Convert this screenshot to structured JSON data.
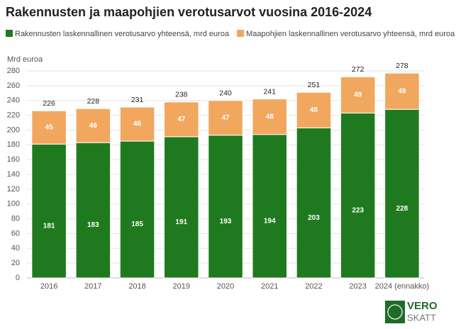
{
  "chart_data": {
    "type": "stacked_bar",
    "title": "Rakennusten ja maapohjien verotusarvot vuosina 2016-2024",
    "y_label": "Mrd euroa",
    "categories": [
      "2016",
      "2017",
      "2018",
      "2019",
      "2020",
      "2021",
      "2022",
      "2023",
      "2024 (ennakko)"
    ],
    "series": [
      {
        "name": "Rakennusten laskennallinen verotusarvo yhteensä, mrd euroa",
        "color": "#1f7a1f",
        "values": [
          181,
          183,
          185,
          191,
          193,
          194,
          203,
          223,
          228
        ]
      },
      {
        "name": "Maapohjien laskennallinen verotusarvo yhteensä, mrd euroa",
        "color": "#f2a75f",
        "values": [
          45,
          46,
          46,
          47,
          47,
          48,
          48,
          49,
          49
        ]
      }
    ],
    "totals": [
      226,
      228,
      231,
      238,
      240,
      241,
      251,
      272,
      278
    ],
    "ylim": [
      0,
      280
    ],
    "yticks": [
      0,
      20,
      40,
      60,
      80,
      100,
      120,
      140,
      160,
      180,
      200,
      220,
      240,
      260,
      280
    ],
    "grid": true
  },
  "logo": {
    "line1": "VERO",
    "line2": "SKATT"
  }
}
